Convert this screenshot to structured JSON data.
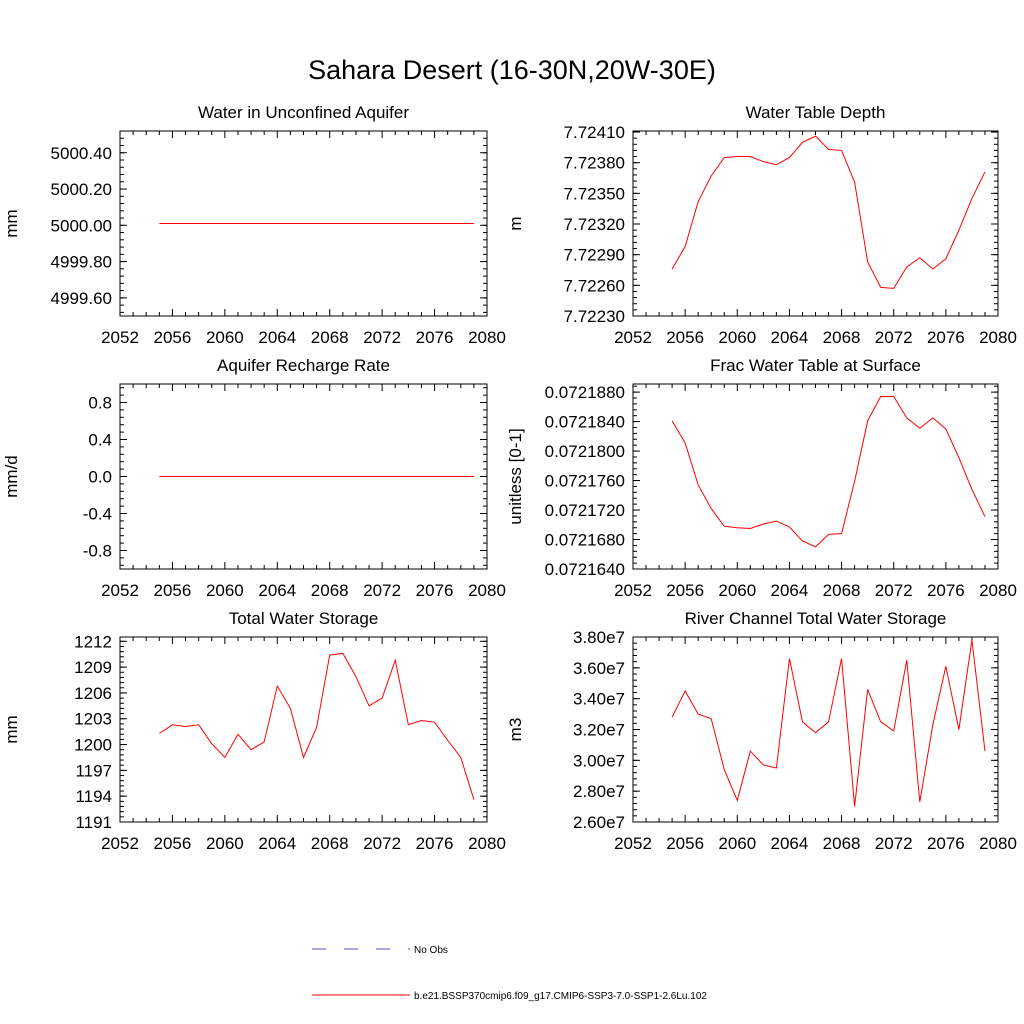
{
  "page_title": "Sahara Desert (16-30N,20W-30E)",
  "colors": {
    "series": "#ff0000",
    "obs": "#5555aa",
    "axis": "#000000"
  },
  "legend": {
    "obs_label": "No Obs",
    "model_label": "b.e21.BSSP370cmip6.f09_g17.CMIP6-SSP3-7.0-SSP1-2.6Lu.102"
  },
  "chart_data": [
    {
      "type": "line",
      "title": "Water in Unconfined Aquifer",
      "ylabel": "mm",
      "xlim": [
        2052,
        2080
      ],
      "ylim": [
        4999.5,
        5000.52
      ],
      "xticks": [
        2052,
        2056,
        2060,
        2064,
        2068,
        2072,
        2076,
        2080
      ],
      "yticks": [
        4999.6,
        4999.8,
        5000.0,
        5000.2,
        5000.4
      ],
      "ytick_labels": [
        "4999.60",
        "4999.80",
        "5000.00",
        "5000.20",
        "5000.40"
      ],
      "x": [
        2055,
        2056,
        2057,
        2058,
        2059,
        2060,
        2061,
        2062,
        2063,
        2064,
        2065,
        2066,
        2067,
        2068,
        2069,
        2070,
        2071,
        2072,
        2073,
        2074,
        2075,
        2076,
        2077,
        2078,
        2079
      ],
      "values": [
        5000.01,
        5000.01,
        5000.01,
        5000.01,
        5000.01,
        5000.01,
        5000.01,
        5000.01,
        5000.01,
        5000.01,
        5000.01,
        5000.01,
        5000.01,
        5000.01,
        5000.01,
        5000.01,
        5000.01,
        5000.01,
        5000.01,
        5000.01,
        5000.01,
        5000.01,
        5000.01,
        5000.01,
        5000.01
      ]
    },
    {
      "type": "line",
      "title": "Water Table Depth",
      "ylabel": "m",
      "xlim": [
        2052,
        2080
      ],
      "ylim": [
        7.7223,
        7.72411
      ],
      "xticks": [
        2052,
        2056,
        2060,
        2064,
        2068,
        2072,
        2076,
        2080
      ],
      "yticks": [
        7.7223,
        7.7226,
        7.7229,
        7.7232,
        7.7235,
        7.7238,
        7.7241
      ],
      "ytick_labels": [
        "7.72230",
        "7.72260",
        "7.72290",
        "7.72320",
        "7.72350",
        "7.72380",
        "7.72410"
      ],
      "x": [
        2055,
        2056,
        2057,
        2058,
        2059,
        2060,
        2061,
        2062,
        2063,
        2064,
        2065,
        2066,
        2067,
        2068,
        2069,
        2070,
        2071,
        2072,
        2073,
        2074,
        2075,
        2076,
        2077,
        2078,
        2079
      ],
      "values": [
        7.72276,
        7.72298,
        7.72342,
        7.72367,
        7.72385,
        7.72386,
        7.72386,
        7.72381,
        7.72378,
        7.72385,
        7.724,
        7.72406,
        7.72393,
        7.72392,
        7.72361,
        7.72283,
        7.72258,
        7.72257,
        7.72278,
        7.72287,
        7.72276,
        7.72286,
        7.72314,
        7.72345,
        7.72371
      ]
    },
    {
      "type": "line",
      "title": "Aquifer Recharge Rate",
      "ylabel": "mm/d",
      "xlim": [
        2052,
        2080
      ],
      "ylim": [
        -1.0,
        1.0
      ],
      "xticks": [
        2052,
        2056,
        2060,
        2064,
        2068,
        2072,
        2076,
        2080
      ],
      "yticks": [
        -0.8,
        -0.4,
        0.0,
        0.4,
        0.8
      ],
      "ytick_labels": [
        "-0.8",
        "-0.4",
        "0.0",
        "0.4",
        "0.8"
      ],
      "x": [
        2055,
        2056,
        2057,
        2058,
        2059,
        2060,
        2061,
        2062,
        2063,
        2064,
        2065,
        2066,
        2067,
        2068,
        2069,
        2070,
        2071,
        2072,
        2073,
        2074,
        2075,
        2076,
        2077,
        2078,
        2079
      ],
      "values": [
        0,
        0,
        0,
        0,
        0,
        0,
        0,
        0,
        0,
        0,
        0,
        0,
        0,
        0,
        0,
        0,
        0,
        0,
        0,
        0,
        0,
        0,
        0,
        0,
        0
      ]
    },
    {
      "type": "line",
      "title": "Frac Water Table at Surface",
      "ylabel": "unitless [0-1]",
      "xlim": [
        2052,
        2080
      ],
      "ylim": [
        0.072164,
        0.0721891
      ],
      "xticks": [
        2052,
        2056,
        2060,
        2064,
        2068,
        2072,
        2076,
        2080
      ],
      "yticks": [
        0.072164,
        0.072168,
        0.072172,
        0.072176,
        0.07218,
        0.072184,
        0.072188
      ],
      "ytick_labels": [
        "0.0721640",
        "0.0721680",
        "0.0721720",
        "0.0721760",
        "0.0721800",
        "0.0721840",
        "0.0721880"
      ],
      "x": [
        2055,
        2056,
        2057,
        2058,
        2059,
        2060,
        2061,
        2062,
        2063,
        2064,
        2065,
        2066,
        2067,
        2068,
        2069,
        2070,
        2071,
        2072,
        2073,
        2074,
        2075,
        2076,
        2077,
        2078,
        2079
      ],
      "values": [
        0.0721841,
        0.0721811,
        0.0721754,
        0.0721722,
        0.0721698,
        0.0721696,
        0.0721695,
        0.0721701,
        0.0721705,
        0.0721697,
        0.0721678,
        0.072167,
        0.0721687,
        0.0721688,
        0.0721759,
        0.0721841,
        0.0721874,
        0.0721874,
        0.0721845,
        0.0721831,
        0.0721845,
        0.072183,
        0.0721791,
        0.0721748,
        0.0721711
      ]
    },
    {
      "type": "line",
      "title": "Total Water Storage",
      "ylabel": "mm",
      "xlim": [
        2052,
        2080
      ],
      "ylim": [
        1191,
        1212.5
      ],
      "xticks": [
        2052,
        2056,
        2060,
        2064,
        2068,
        2072,
        2076,
        2080
      ],
      "yticks": [
        1191,
        1194,
        1197,
        1200,
        1203,
        1206,
        1209,
        1212
      ],
      "ytick_labels": [
        "1191",
        "1194",
        "1197",
        "1200",
        "1203",
        "1206",
        "1209",
        "1212"
      ],
      "x": [
        2055,
        2056,
        2057,
        2058,
        2059,
        2060,
        2061,
        2062,
        2063,
        2064,
        2065,
        2066,
        2067,
        2068,
        2069,
        2070,
        2071,
        2072,
        2073,
        2074,
        2075,
        2076,
        2077,
        2078,
        2079
      ],
      "values": [
        1201.3,
        1202.3,
        1202.1,
        1202.3,
        1200.1,
        1198.5,
        1201.2,
        1199.4,
        1200.3,
        1206.8,
        1204.2,
        1198.5,
        1202.0,
        1210.4,
        1210.6,
        1207.9,
        1204.5,
        1205.4,
        1209.8,
        1202.3,
        1202.8,
        1202.6,
        1200.5,
        1198.5,
        1193.6
      ]
    },
    {
      "type": "line",
      "title": "River Channel Total Water Storage",
      "ylabel": "m3",
      "xlim": [
        2052,
        2080
      ],
      "ylim": [
        26000000,
        38000000
      ],
      "xticks": [
        2052,
        2056,
        2060,
        2064,
        2068,
        2072,
        2076,
        2080
      ],
      "yticks": [
        26000000,
        28000000,
        30000000,
        32000000,
        34000000,
        36000000,
        38000000
      ],
      "ytick_labels": [
        "2.60e7",
        "2.80e7",
        "3.00e7",
        "3.20e7",
        "3.40e7",
        "3.60e7",
        "3.80e7"
      ],
      "x": [
        2055,
        2056,
        2057,
        2058,
        2059,
        2060,
        2061,
        2062,
        2063,
        2064,
        2065,
        2066,
        2067,
        2068,
        2069,
        2070,
        2071,
        2072,
        2073,
        2074,
        2075,
        2076,
        2077,
        2078,
        2079
      ],
      "values": [
        32800000,
        34500000,
        33000000,
        32700000,
        29400000,
        27400000,
        30600000,
        29700000,
        29500000,
        36600000,
        32500000,
        31800000,
        32500000,
        36600000,
        27000000,
        34600000,
        32500000,
        31900000,
        36500000,
        27300000,
        32300000,
        36100000,
        32000000,
        37800000,
        30600000
      ]
    }
  ]
}
